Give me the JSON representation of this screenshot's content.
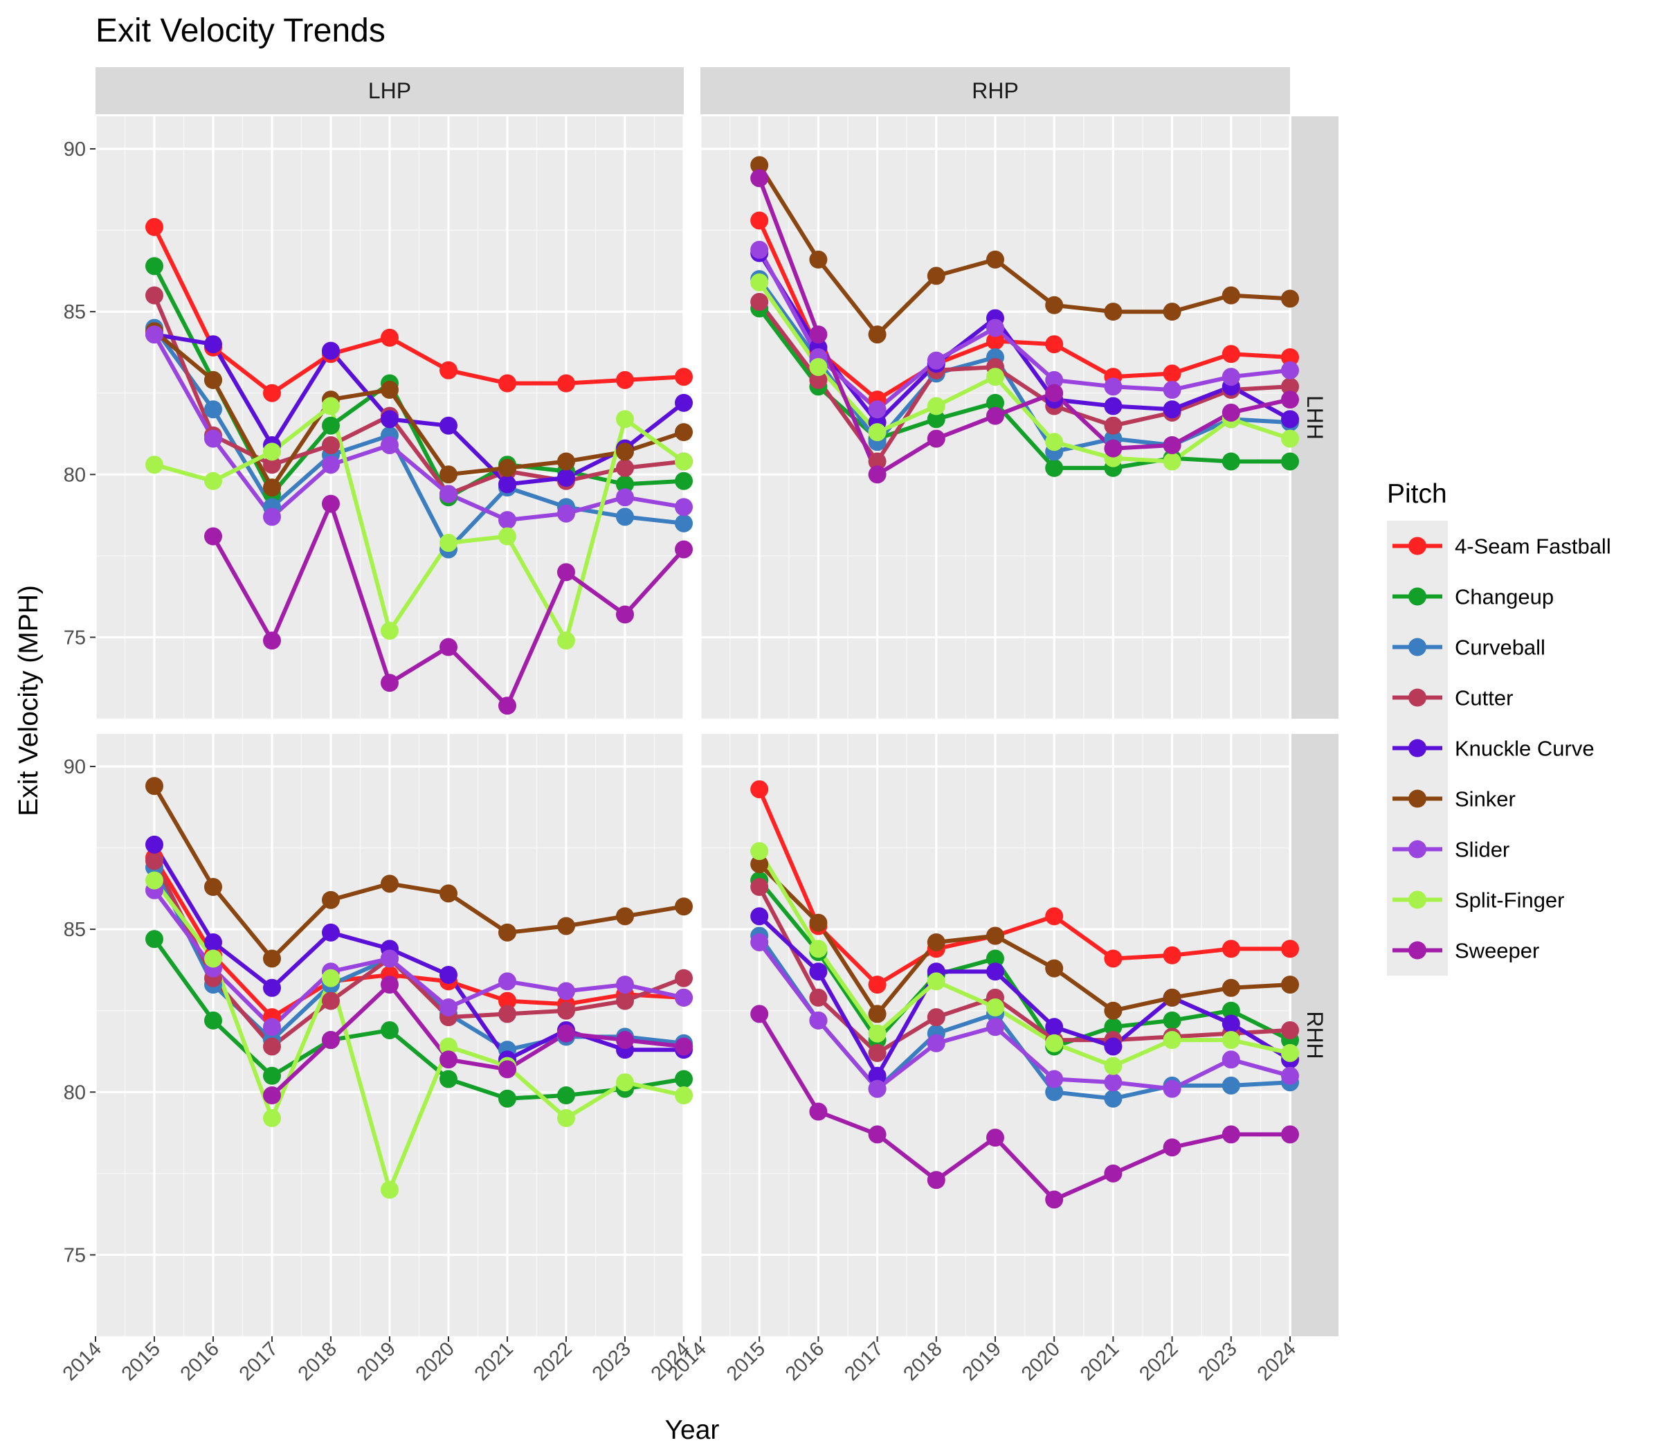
{
  "chart_data": {
    "type": "line",
    "title": "Exit Velocity Trends",
    "xlabel": "Year",
    "ylabel": "Exit Velocity (MPH)",
    "xlim": [
      2014,
      2024
    ],
    "ylim": [
      72.5,
      91
    ],
    "x_ticks": [
      2014,
      2015,
      2016,
      2017,
      2018,
      2019,
      2020,
      2021,
      2022,
      2023,
      2024
    ],
    "y_ticks": [
      75,
      80,
      85,
      90
    ],
    "grid": true,
    "facet_columns": [
      "LHP",
      "RHP"
    ],
    "facet_rows": [
      "LHH",
      "RHH"
    ],
    "legend": {
      "title": "Pitch",
      "placement": "right",
      "entries": [
        "4-Seam Fastball",
        "Changeup",
        "Curveball",
        "Cutter",
        "Knuckle Curve",
        "Sinker",
        "Slider",
        "Split-Finger",
        "Sweeper"
      ]
    },
    "colors": {
      "4-Seam Fastball": "#FF2222",
      "Changeup": "#13A028",
      "Curveball": "#3A7DC0",
      "Cutter": "#B83A58",
      "Knuckle Curve": "#5A10D8",
      "Sinker": "#8A4510",
      "Slider": "#9A44E0",
      "Split-Finger": "#A6F24A",
      "Sweeper": "#A21EAA"
    },
    "x": [
      2015,
      2016,
      2017,
      2018,
      2019,
      2020,
      2021,
      2022,
      2023,
      2024
    ],
    "panels": [
      {
        "col": "LHP",
        "row": "LHH",
        "series": [
          {
            "name": "4-Seam Fastball",
            "values": [
              87.6,
              83.9,
              82.5,
              83.7,
              84.2,
              83.2,
              82.8,
              82.8,
              82.9,
              83.0
            ]
          },
          {
            "name": "Changeup",
            "values": [
              86.4,
              82.9,
              79.4,
              81.5,
              82.8,
              79.3,
              80.3,
              80.1,
              79.7,
              79.8
            ]
          },
          {
            "name": "Curveball",
            "values": [
              84.5,
              82.0,
              79.0,
              80.6,
              81.2,
              77.7,
              79.6,
              79.0,
              78.7,
              78.5
            ]
          },
          {
            "name": "Cutter",
            "values": [
              85.5,
              81.2,
              80.3,
              80.9,
              81.8,
              79.4,
              80.1,
              79.8,
              80.2,
              80.4
            ]
          },
          {
            "name": "Knuckle Curve",
            "values": [
              84.3,
              84.0,
              80.9,
              83.8,
              81.7,
              81.5,
              79.7,
              79.9,
              80.8,
              82.2
            ]
          },
          {
            "name": "Sinker",
            "values": [
              84.4,
              82.9,
              79.6,
              82.3,
              82.6,
              80.0,
              80.2,
              80.4,
              80.7,
              81.3
            ]
          },
          {
            "name": "Slider",
            "values": [
              84.3,
              81.1,
              78.7,
              80.3,
              80.9,
              79.4,
              78.6,
              78.8,
              79.3,
              79.0
            ]
          },
          {
            "name": "Split-Finger",
            "values": [
              80.3,
              79.8,
              80.7,
              82.1,
              75.2,
              77.9,
              78.1,
              74.9,
              81.7,
              80.4
            ]
          },
          {
            "name": "Sweeper",
            "values": [
              null,
              78.1,
              74.9,
              79.1,
              73.6,
              74.7,
              72.9,
              77.0,
              75.7,
              77.7
            ]
          }
        ]
      },
      {
        "col": "RHP",
        "row": "LHH",
        "series": [
          {
            "name": "4-Seam Fastball",
            "values": [
              87.8,
              83.8,
              82.3,
              83.4,
              84.1,
              84.0,
              83.0,
              83.1,
              83.7,
              83.6
            ]
          },
          {
            "name": "Changeup",
            "values": [
              85.1,
              82.7,
              81.1,
              81.7,
              82.2,
              80.2,
              80.2,
              80.5,
              80.4,
              80.4
            ]
          },
          {
            "name": "Curveball",
            "values": [
              86.0,
              83.5,
              81.0,
              83.1,
              83.6,
              80.7,
              81.1,
              80.9,
              81.7,
              81.6
            ]
          },
          {
            "name": "Cutter",
            "values": [
              85.3,
              82.9,
              80.4,
              83.2,
              83.3,
              82.1,
              81.5,
              81.9,
              82.6,
              82.7
            ]
          },
          {
            "name": "Knuckle Curve",
            "values": [
              86.8,
              83.9,
              81.6,
              83.4,
              84.8,
              82.3,
              82.1,
              82.0,
              82.7,
              81.7
            ]
          },
          {
            "name": "Sinker",
            "values": [
              89.5,
              86.6,
              84.3,
              86.1,
              86.6,
              85.2,
              85.0,
              85.0,
              85.5,
              85.4
            ]
          },
          {
            "name": "Slider",
            "values": [
              86.9,
              83.6,
              82.0,
              83.5,
              84.5,
              82.9,
              82.7,
              82.6,
              83.0,
              83.2
            ]
          },
          {
            "name": "Split-Finger",
            "values": [
              85.9,
              83.3,
              81.3,
              82.1,
              83.0,
              81.0,
              80.5,
              80.4,
              81.7,
              81.1
            ]
          },
          {
            "name": "Sweeper",
            "values": [
              89.1,
              84.3,
              80.0,
              81.1,
              81.8,
              82.5,
              80.8,
              80.9,
              81.9,
              82.3
            ]
          }
        ]
      },
      {
        "col": "LHP",
        "row": "RHH",
        "series": [
          {
            "name": "4-Seam Fastball",
            "values": [
              87.2,
              84.2,
              82.3,
              83.4,
              83.6,
              83.4,
              82.8,
              82.7,
              83.0,
              82.9
            ]
          },
          {
            "name": "Changeup",
            "values": [
              84.7,
              82.2,
              80.5,
              81.6,
              81.9,
              80.4,
              79.8,
              79.9,
              80.1,
              80.4
            ]
          },
          {
            "name": "Curveball",
            "values": [
              86.9,
              83.3,
              81.6,
              83.3,
              84.1,
              82.4,
              81.3,
              81.7,
              81.7,
              81.5
            ]
          },
          {
            "name": "Cutter",
            "values": [
              87.1,
              83.5,
              81.4,
              82.8,
              84.1,
              82.3,
              82.4,
              82.5,
              82.8,
              83.5
            ]
          },
          {
            "name": "Knuckle Curve",
            "values": [
              87.6,
              84.6,
              83.2,
              84.9,
              84.4,
              83.6,
              81.0,
              81.9,
              81.3,
              81.3
            ]
          },
          {
            "name": "Sinker",
            "values": [
              89.4,
              86.3,
              84.1,
              85.9,
              86.4,
              86.1,
              84.9,
              85.1,
              85.4,
              85.7
            ]
          },
          {
            "name": "Slider",
            "values": [
              86.2,
              83.8,
              82.0,
              83.7,
              84.1,
              82.6,
              83.4,
              83.1,
              83.3,
              82.9
            ]
          },
          {
            "name": "Split-Finger",
            "values": [
              86.5,
              84.1,
              79.2,
              83.5,
              77.0,
              81.4,
              80.8,
              79.2,
              80.3,
              79.9
            ]
          },
          {
            "name": "Sweeper",
            "values": [
              null,
              null,
              79.9,
              81.6,
              83.3,
              81.0,
              80.7,
              81.8,
              81.6,
              81.4
            ]
          }
        ]
      },
      {
        "col": "RHP",
        "row": "RHH",
        "series": [
          {
            "name": "4-Seam Fastball",
            "values": [
              89.3,
              85.1,
              83.3,
              84.4,
              84.8,
              85.4,
              84.1,
              84.2,
              84.4,
              84.4
            ]
          },
          {
            "name": "Changeup",
            "values": [
              86.5,
              84.3,
              81.6,
              83.6,
              84.1,
              81.4,
              82.0,
              82.2,
              82.5,
              81.6
            ]
          },
          {
            "name": "Curveball",
            "values": [
              84.8,
              82.2,
              80.1,
              81.8,
              82.4,
              80.0,
              79.8,
              80.2,
              80.2,
              80.3
            ]
          },
          {
            "name": "Cutter",
            "values": [
              86.3,
              82.9,
              81.2,
              82.3,
              82.9,
              81.6,
              81.6,
              81.7,
              81.8,
              81.9
            ]
          },
          {
            "name": "Knuckle Curve",
            "values": [
              85.4,
              83.7,
              80.5,
              83.7,
              83.7,
              82.0,
              81.4,
              82.9,
              82.1,
              81.0
            ]
          },
          {
            "name": "Sinker",
            "values": [
              87.0,
              85.2,
              82.4,
              84.6,
              84.8,
              83.8,
              82.5,
              82.9,
              83.2,
              83.3
            ]
          },
          {
            "name": "Slider",
            "values": [
              84.6,
              82.2,
              80.1,
              81.5,
              82.0,
              80.4,
              80.3,
              80.1,
              81.0,
              80.5
            ]
          },
          {
            "name": "Split-Finger",
            "values": [
              87.4,
              84.4,
              81.8,
              83.4,
              82.6,
              81.5,
              80.8,
              81.6,
              81.6,
              81.2
            ]
          },
          {
            "name": "Sweeper",
            "values": [
              82.4,
              79.4,
              78.7,
              77.3,
              78.6,
              76.7,
              77.5,
              78.3,
              78.7,
              78.7
            ]
          }
        ]
      }
    ]
  }
}
